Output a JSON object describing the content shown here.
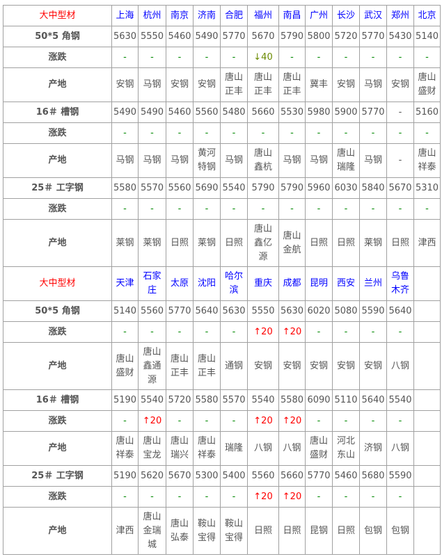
{
  "colors": {
    "corner": "#ff0000",
    "city": "#0000ff",
    "flat": "#008800",
    "up": "#ff0000",
    "down": "#6a8a00"
  },
  "labels": {
    "change": "涨跌",
    "origin": "产地"
  },
  "blocks": [
    {
      "corner": "大中型材",
      "cities": [
        "上海",
        "杭州",
        "南京",
        "济南",
        "合肥",
        "福州",
        "南昌",
        "广州",
        "长沙",
        "武汉",
        "郑州",
        "北京"
      ],
      "products": [
        {
          "name": "50*5 角钢",
          "prices": [
            "5630",
            "5550",
            "5460",
            "5490",
            "5770",
            "5670",
            "5790",
            "5800",
            "5720",
            "5770",
            "5430",
            "5140"
          ],
          "changes": [
            "-",
            "-",
            "-",
            "-",
            "-",
            "↓40",
            "-",
            "-",
            "-",
            "-",
            "-",
            "-"
          ],
          "origins": [
            "安钢",
            "马钢",
            "安钢",
            "安钢",
            "唐山\n正丰",
            "唐山\n正丰",
            "唐山\n正丰",
            "冀丰",
            "安钢",
            "马钢",
            "安钢",
            "唐山\n盛财"
          ]
        },
        {
          "name": "16＃ 槽钢",
          "prices": [
            "5490",
            "5490",
            "5460",
            "5560",
            "5480",
            "5660",
            "5530",
            "5980",
            "5900",
            "5770",
            "-",
            "5160"
          ],
          "changes": [
            "-",
            "-",
            "-",
            "-",
            "-",
            "-",
            "-",
            "-",
            "-",
            "-",
            "-",
            "-"
          ],
          "origins": [
            "马钢",
            "马钢",
            "马钢",
            "黄河\n特钢",
            "马钢",
            "唐山\n鑫杭",
            "马钢",
            "马钢",
            "唐山\n瑞隆",
            "马钢",
            "-",
            "唐山\n祥泰"
          ]
        },
        {
          "name": "25＃ 工字钢",
          "prices": [
            "5580",
            "5570",
            "5560",
            "5690",
            "5540",
            "5790",
            "5790",
            "5960",
            "6030",
            "5840",
            "5670",
            "5310"
          ],
          "changes": [
            "-",
            "-",
            "-",
            "-",
            "-",
            "-",
            "-",
            "-",
            "-",
            "-",
            "-",
            "-"
          ],
          "origins": [
            "莱钢",
            "莱钢",
            "日照",
            "莱钢",
            "日照",
            "唐山\n鑫亿\n源",
            "唐山\n金航",
            "日照",
            "日照",
            "莱钢",
            "日照",
            "津西"
          ]
        }
      ]
    },
    {
      "corner": "大中型材",
      "cities": [
        "天津",
        "石家\n庄",
        "太原",
        "沈阳",
        "哈尔\n滨",
        "重庆",
        "成都",
        "昆明",
        "西安",
        "兰州",
        "乌鲁\n木齐",
        ""
      ],
      "products": [
        {
          "name": "50*5 角钢",
          "prices": [
            "5140",
            "5560",
            "5770",
            "5640",
            "5630",
            "5550",
            "5630",
            "6020",
            "5080",
            "5590",
            "5640",
            ""
          ],
          "changes": [
            "-",
            "-",
            "-",
            "-",
            "-",
            "↑20",
            "↑20",
            "-",
            "-",
            "-",
            "-",
            ""
          ],
          "origins": [
            "唐山\n盛财",
            "唐山\n鑫通\n源",
            "唐山\n正丰",
            "唐山\n正丰",
            "通钢",
            "安钢",
            "安钢",
            "安钢",
            "安钢",
            "安钢",
            "八钢",
            ""
          ]
        },
        {
          "name": "16＃ 槽钢",
          "prices": [
            "5190",
            "5540",
            "5720",
            "5580",
            "5570",
            "5540",
            "5580",
            "6090",
            "5110",
            "5640",
            "5540",
            ""
          ],
          "changes": [
            "-",
            "↑20",
            "-",
            "-",
            "-",
            "↑20",
            "↑20",
            "-",
            "-",
            "-",
            "-",
            ""
          ],
          "origins": [
            "唐山\n祥泰",
            "唐山\n宝龙",
            "唐山\n瑞兴",
            "唐山\n祥泰",
            "瑞隆",
            "八钢",
            "八钢",
            "唐山\n盛财",
            "河北\n东山",
            "济钢",
            "八钢",
            ""
          ]
        },
        {
          "name": "25＃ 工字钢",
          "prices": [
            "5190",
            "5620",
            "5670",
            "5300",
            "5400",
            "5560",
            "5660",
            "5770",
            "5460",
            "5680",
            "5590",
            ""
          ],
          "changes": [
            "-",
            "-",
            "-",
            "-",
            "-",
            "↑20",
            "↑20",
            "-",
            "-",
            "-",
            "-",
            ""
          ],
          "origins": [
            "津西",
            "唐山\n金瑞\n城",
            "唐山\n弘泰",
            "鞍山\n宝得",
            "鞍山\n宝得",
            "日照",
            "日照",
            "昆钢",
            "日照",
            "包钢",
            "包钢",
            ""
          ]
        }
      ]
    }
  ]
}
